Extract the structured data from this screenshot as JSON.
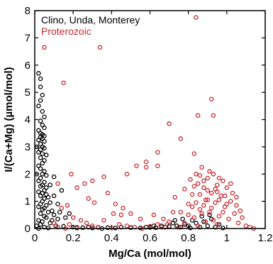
{
  "chart_data": {
    "type": "scatter",
    "xlabel": "Mg/Ca (mol/mol)",
    "ylabel": "I/(Ca+Mg) (µmol/mol)",
    "xlim": [
      0,
      1.2
    ],
    "ylim": [
      0,
      8
    ],
    "xticks": [
      "0",
      "0.2",
      "0.4",
      "0.6",
      "0.8",
      "1",
      "1.2"
    ],
    "yticks": [
      "0",
      "1",
      "2",
      "3",
      "4",
      "5",
      "6",
      "7",
      "8"
    ],
    "grid": false,
    "legend_position": "top-left",
    "series": [
      {
        "name": "Clino, Unda, Monterey",
        "color": "#000000",
        "marker": "open-circle",
        "points": [
          [
            0.02,
            5.7
          ],
          [
            0.03,
            5.5
          ],
          [
            0.03,
            5.2
          ],
          [
            0.04,
            4.9
          ],
          [
            0.03,
            4.7
          ],
          [
            0.02,
            4.5
          ],
          [
            0.04,
            4.3
          ],
          [
            0.05,
            4.1
          ],
          [
            0.03,
            3.95
          ],
          [
            0.04,
            3.8
          ],
          [
            0.05,
            3.7
          ],
          [
            0.02,
            3.6
          ],
          [
            0.03,
            3.5
          ],
          [
            0.04,
            3.45
          ],
          [
            0.05,
            3.4
          ],
          [
            0.03,
            3.35
          ],
          [
            0.04,
            3.3
          ],
          [
            0.02,
            3.25
          ],
          [
            0.05,
            3.2
          ],
          [
            0.03,
            3.1
          ],
          [
            0.04,
            3.0
          ],
          [
            0.05,
            2.95
          ],
          [
            0.03,
            2.9
          ],
          [
            0.02,
            2.8
          ],
          [
            0.04,
            2.75
          ],
          [
            0.06,
            2.7
          ],
          [
            0.03,
            2.6
          ],
          [
            0.05,
            2.5
          ],
          [
            0.04,
            2.4
          ],
          [
            0.02,
            2.3
          ],
          [
            0.03,
            2.2
          ],
          [
            0.05,
            2.1
          ],
          [
            0.04,
            2.0
          ],
          [
            0.06,
            1.95
          ],
          [
            0.03,
            1.85
          ],
          [
            0.02,
            1.75
          ],
          [
            0.05,
            1.7
          ],
          [
            0.04,
            1.6
          ],
          [
            0.03,
            1.55
          ],
          [
            0.06,
            1.5
          ],
          [
            0.05,
            1.4
          ],
          [
            0.02,
            1.35
          ],
          [
            0.04,
            1.3
          ],
          [
            0.03,
            1.2
          ],
          [
            0.07,
            1.15
          ],
          [
            0.05,
            1.1
          ],
          [
            0.04,
            1.0
          ],
          [
            0.08,
            0.95
          ],
          [
            0.03,
            0.9
          ],
          [
            0.06,
            0.85
          ],
          [
            0.02,
            0.8
          ],
          [
            0.05,
            0.75
          ],
          [
            0.04,
            0.7
          ],
          [
            0.09,
            0.65
          ],
          [
            0.07,
            0.6
          ],
          [
            0.03,
            0.55
          ],
          [
            0.1,
            0.5
          ],
          [
            0.05,
            0.45
          ],
          [
            0.06,
            0.4
          ],
          [
            0.12,
            0.35
          ],
          [
            0.02,
            0.3
          ],
          [
            0.04,
            0.25
          ],
          [
            0.08,
            0.2
          ],
          [
            0.03,
            0.15
          ],
          [
            0.11,
            0.1
          ],
          [
            0.05,
            0.05
          ],
          [
            0.07,
            0.02
          ],
          [
            0.15,
            0.08
          ],
          [
            0.2,
            0.05
          ],
          [
            0.22,
            0.02
          ],
          [
            0.09,
            0.3
          ],
          [
            0.13,
            0.6
          ],
          [
            0.16,
            0.4
          ],
          [
            0.18,
            0.55
          ],
          [
            0.12,
            0.9
          ],
          [
            0.1,
            1.2
          ],
          [
            0.14,
            1.4
          ],
          [
            0.08,
            1.6
          ],
          [
            0.1,
            1.9
          ],
          [
            0.06,
            1.25
          ],
          [
            0.25,
            0.03
          ],
          [
            0.28,
            0.05
          ],
          [
            0.3,
            0.02
          ],
          [
            0.33,
            0.04
          ],
          [
            0.35,
            0.0
          ],
          [
            0.38,
            0.03
          ],
          [
            0.42,
            0.02
          ],
          [
            0.45,
            0.05
          ],
          [
            0.5,
            0.03
          ],
          [
            0.55,
            0.02
          ],
          [
            0.6,
            0.04
          ],
          [
            0.63,
            0.03
          ],
          [
            0.66,
            0.1
          ],
          [
            0.68,
            0.05
          ],
          [
            0.7,
            0.08
          ],
          [
            0.72,
            0.2
          ],
          [
            0.74,
            0.1
          ],
          [
            0.76,
            0.05
          ],
          [
            0.78,
            0.15
          ],
          [
            0.8,
            0.1
          ],
          [
            0.82,
            0.3
          ],
          [
            0.84,
            0.2
          ],
          [
            0.86,
            0.05
          ],
          [
            0.88,
            0.25
          ],
          [
            0.9,
            0.1
          ],
          [
            0.92,
            0.35
          ],
          [
            0.94,
            0.05
          ],
          [
            0.96,
            0.15
          ],
          [
            0.98,
            0.02
          ],
          [
            0.81,
            0.02
          ],
          [
            0.73,
            0.3
          ],
          [
            0.77,
            0.35
          ],
          [
            0.87,
            0.45
          ],
          [
            0.91,
            0.5
          ],
          [
            0.62,
            0.1
          ],
          [
            0.58,
            0.05
          ],
          [
            0.01,
            0.1
          ],
          [
            0.02,
            0.0
          ],
          [
            0.01,
            2.0
          ],
          [
            0.01,
            3.0
          ]
        ]
      },
      {
        "name": "Proterozoic",
        "color": "#c8282e",
        "marker": "open-circle",
        "points": [
          [
            0.05,
            6.65
          ],
          [
            0.34,
            6.65
          ],
          [
            0.84,
            7.75
          ],
          [
            0.15,
            5.35
          ],
          [
            0.92,
            4.75
          ],
          [
            0.85,
            4.15
          ],
          [
            0.93,
            4.15
          ],
          [
            0.7,
            3.85
          ],
          [
            0.76,
            3.3
          ],
          [
            0.64,
            2.8
          ],
          [
            0.83,
            2.75
          ],
          [
            0.58,
            2.45
          ],
          [
            0.53,
            2.3
          ],
          [
            0.58,
            2.25
          ],
          [
            0.64,
            2.3
          ],
          [
            0.36,
            1.9
          ],
          [
            0.48,
            2.0
          ],
          [
            0.19,
            2.0
          ],
          [
            0.12,
            1.65
          ],
          [
            0.3,
            1.75
          ],
          [
            0.26,
            1.65
          ],
          [
            0.22,
            1.5
          ],
          [
            0.28,
            1.1
          ],
          [
            0.38,
            1.3
          ],
          [
            0.31,
            0.95
          ],
          [
            0.14,
            0.75
          ],
          [
            0.17,
            0.85
          ],
          [
            0.41,
            0.55
          ],
          [
            0.2,
            0.4
          ],
          [
            0.45,
            0.5
          ],
          [
            0.5,
            0.55
          ],
          [
            0.36,
            0.3
          ],
          [
            0.24,
            0.3
          ],
          [
            0.27,
            0.2
          ],
          [
            0.18,
            0.15
          ],
          [
            0.1,
            0.2
          ],
          [
            0.12,
            0.05
          ],
          [
            0.16,
            0.0
          ],
          [
            0.22,
            0.05
          ],
          [
            0.3,
            0.1
          ],
          [
            0.33,
            0.05
          ],
          [
            0.4,
            0.02
          ],
          [
            0.44,
            0.15
          ],
          [
            0.48,
            0.1
          ],
          [
            0.52,
            0.05
          ],
          [
            0.56,
            0.0
          ],
          [
            0.6,
            0.08
          ],
          [
            0.64,
            0.15
          ],
          [
            0.67,
            0.35
          ],
          [
            0.7,
            0.25
          ],
          [
            0.73,
            1.15
          ],
          [
            0.76,
            0.6
          ],
          [
            0.78,
            1.45
          ],
          [
            0.8,
            0.9
          ],
          [
            0.81,
            1.8
          ],
          [
            0.82,
            1.25
          ],
          [
            0.83,
            0.4
          ],
          [
            0.84,
            2.0
          ],
          [
            0.85,
            1.65
          ],
          [
            0.86,
            0.7
          ],
          [
            0.87,
            2.25
          ],
          [
            0.88,
            1.5
          ],
          [
            0.89,
            1.05
          ],
          [
            0.9,
            1.85
          ],
          [
            0.91,
            0.6
          ],
          [
            0.92,
            1.3
          ],
          [
            0.93,
            2.0
          ],
          [
            0.94,
            0.95
          ],
          [
            0.95,
            1.6
          ],
          [
            0.96,
            0.45
          ],
          [
            0.97,
            1.2
          ],
          [
            0.98,
            1.75
          ],
          [
            0.99,
            0.8
          ],
          [
            1.0,
            1.5
          ],
          [
            1.01,
            0.35
          ],
          [
            1.02,
            1.0
          ],
          [
            1.03,
            1.3
          ],
          [
            1.04,
            0.55
          ],
          [
            1.05,
            0.85
          ],
          [
            1.06,
            0.2
          ],
          [
            1.07,
            0.65
          ],
          [
            1.08,
            0.4
          ],
          [
            1.1,
            0.1
          ],
          [
            1.12,
            0.05
          ],
          [
            1.14,
            0.0
          ],
          [
            0.86,
            1.25
          ],
          [
            0.9,
            1.05
          ],
          [
            0.94,
            1.45
          ],
          [
            0.88,
            0.85
          ],
          [
            0.92,
            0.75
          ],
          [
            0.96,
            1.05
          ],
          [
            0.84,
            0.95
          ],
          [
            0.98,
            0.6
          ],
          [
            0.82,
            0.8
          ],
          [
            1.0,
            0.9
          ],
          [
            0.87,
            0.55
          ],
          [
            0.93,
            0.3
          ],
          [
            0.89,
            0.25
          ],
          [
            0.95,
            0.15
          ],
          [
            0.85,
            0.1
          ],
          [
            0.8,
            0.5
          ],
          [
            0.78,
            0.2
          ],
          [
            0.75,
            0.05
          ],
          [
            0.72,
            0.6
          ],
          [
            0.69,
            0.15
          ],
          [
            0.66,
            0.05
          ],
          [
            0.62,
            0.5
          ],
          [
            0.55,
            0.35
          ],
          [
            0.46,
            0.75
          ],
          [
            0.42,
            0.9
          ],
          [
            0.9,
            1.4
          ],
          [
            0.96,
            1.85
          ],
          [
            1.02,
            1.65
          ],
          [
            0.91,
            2.1
          ],
          [
            0.86,
            1.95
          ],
          [
            0.99,
            1.2
          ],
          [
            1.05,
            1.15
          ],
          [
            0.83,
            1.55
          ],
          [
            0.88,
            1.75
          ],
          [
            0.95,
            1.35
          ]
        ]
      }
    ]
  }
}
